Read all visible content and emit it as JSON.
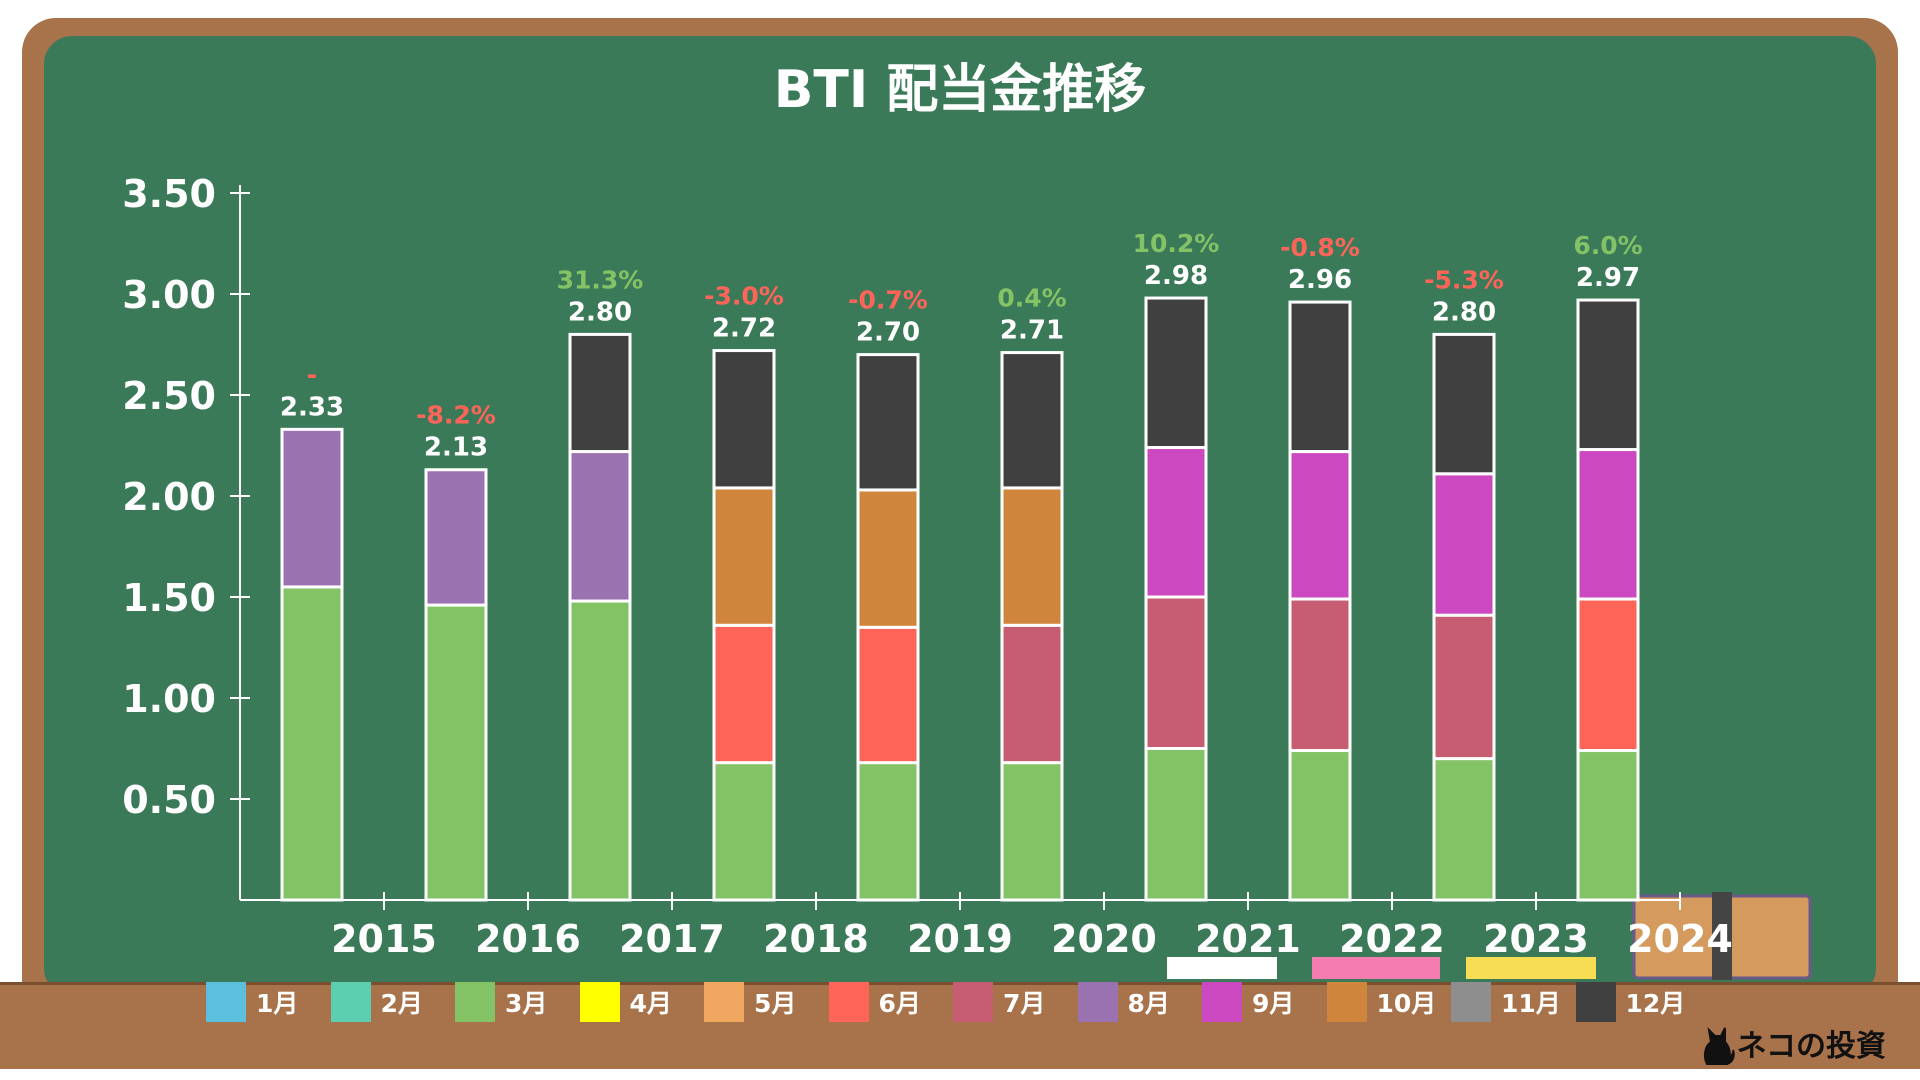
{
  "chart_data": {
    "type": "bar",
    "stacked": true,
    "title": "BTI 配当金推移",
    "categories": [
      "2015",
      "2016",
      "2017",
      "2018",
      "2019",
      "2020",
      "2021",
      "2022",
      "2023",
      "2024"
    ],
    "ylim": [
      0,
      3.5
    ],
    "yticks": [
      "0.50",
      "1.00",
      "1.50",
      "2.00",
      "2.50",
      "3.00",
      "3.50"
    ],
    "totals": [
      "2.33",
      "2.13",
      "2.80",
      "2.72",
      "2.70",
      "2.71",
      "2.98",
      "2.96",
      "2.80",
      "2.97"
    ],
    "changes": [
      "-",
      "-8.2%",
      "31.3%",
      "-3.0%",
      "-0.7%",
      "0.4%",
      "10.2%",
      "-0.8%",
      "-5.3%",
      "6.0%"
    ],
    "series": [
      {
        "name": "1月",
        "color": "#5bc0de",
        "values": [
          0,
          0,
          0,
          0,
          0,
          0,
          0,
          0,
          0,
          0
        ]
      },
      {
        "name": "2月",
        "color": "#5ccfb0",
        "values": [
          0,
          0,
          0,
          0,
          0,
          0,
          0,
          0,
          0,
          0
        ]
      },
      {
        "name": "3月",
        "color": "#84c266",
        "values": [
          1.55,
          1.46,
          1.48,
          0.68,
          0.68,
          0.68,
          0.75,
          0.74,
          0.7,
          0.74
        ]
      },
      {
        "name": "4月",
        "color": "#ffff00",
        "values": [
          0,
          0,
          0,
          0,
          0,
          0,
          0,
          0,
          0,
          0
        ]
      },
      {
        "name": "5月",
        "color": "#f0a860",
        "values": [
          0,
          0,
          0,
          0,
          0,
          0,
          0,
          0,
          0,
          0
        ]
      },
      {
        "name": "6月",
        "color": "#ff6459",
        "values": [
          0,
          0,
          0,
          0.68,
          0.67,
          0,
          0,
          0,
          0,
          0.75
        ]
      },
      {
        "name": "7月",
        "color": "#c65d72",
        "values": [
          0,
          0,
          0,
          0,
          0,
          0.68,
          0.75,
          0.75,
          0.71,
          0
        ]
      },
      {
        "name": "8月",
        "color": "#9b72b0",
        "values": [
          0.78,
          0.67,
          0.74,
          0,
          0,
          0,
          0,
          0,
          0,
          0
        ]
      },
      {
        "name": "9月",
        "color": "#cc48c0",
        "values": [
          0,
          0,
          0,
          0,
          0,
          0,
          0.74,
          0.73,
          0.7,
          0.74
        ]
      },
      {
        "name": "10月",
        "color": "#cf853c",
        "values": [
          0,
          0,
          0,
          0.68,
          0.68,
          0.68,
          0,
          0,
          0,
          0
        ]
      },
      {
        "name": "11月",
        "color": "#8e8e8e",
        "values": [
          0,
          0,
          0,
          0,
          0,
          0,
          0,
          0,
          0,
          0
        ]
      },
      {
        "name": "12月",
        "color": "#404040",
        "values": [
          0,
          0,
          0.58,
          0.68,
          0.67,
          0.67,
          0.74,
          0.74,
          0.69,
          0.74
        ]
      }
    ],
    "colors": {
      "positive": "#84c266",
      "negative": "#ff6459",
      "axis": "#ffffff",
      "board": "#3a7a59"
    },
    "grid": false,
    "legend_position": "bottom"
  },
  "brand": {
    "text": "ネコの投資",
    "icon": "black-cat-icon"
  }
}
